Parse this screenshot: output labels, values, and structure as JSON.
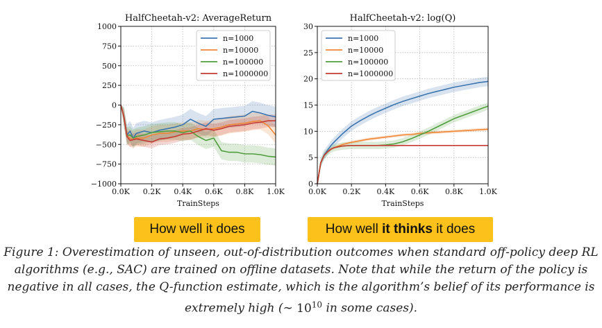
{
  "colors": {
    "n1000": "#3b75af",
    "n10000": "#ef8636",
    "n100000": "#519e3e",
    "n1000000": "#c53a32",
    "badge": "#fcc21b"
  },
  "badges": {
    "left": "How well it does",
    "right_pre": "How well ",
    "right_bold": "it thinks",
    "right_post": " it does"
  },
  "caption": {
    "line1": "Figure 1: Overestimation of unseen, out-of-distribution outcomes when standard off-policy deep RL",
    "line2": "algorithms (e.g., SAC) are trained on offline datasets. Note that while the return of the policy is",
    "line3": "negative in all cases, the Q-function estimate, which is the algorithm’s belief of its performance is",
    "line4_pre": "extremely high (∼ ",
    "line4_base": "10",
    "line4_exp": "10",
    "line4_post": " in some cases)."
  },
  "chart_data": [
    {
      "type": "line",
      "title": "HalfCheetah-v2: AverageReturn",
      "xlabel": "TrainSteps",
      "ylabel": "",
      "xlim": [
        0,
        1000
      ],
      "ylim": [
        -1000,
        1000
      ],
      "xticks": [
        0,
        200,
        400,
        600,
        800,
        1000
      ],
      "xtick_labels": [
        "0.0K",
        "0.2K",
        "0.4K",
        "0.6K",
        "0.8K",
        "1.0K"
      ],
      "yticks": [
        -1000,
        -750,
        -500,
        -250,
        0,
        250,
        500,
        750,
        1000
      ],
      "ytick_labels": [
        "−1000",
        "−750",
        "−500",
        "−250",
        "0",
        "250",
        "500",
        "750",
        "1000"
      ],
      "grid": true,
      "legend": "top-right",
      "x": [
        0,
        20,
        40,
        60,
        80,
        100,
        150,
        200,
        250,
        300,
        350,
        400,
        450,
        500,
        550,
        600,
        650,
        700,
        750,
        800,
        850,
        900,
        950,
        1000
      ],
      "series": [
        {
          "name": "n=1000",
          "color_key": "n1000",
          "band": 130,
          "values": [
            0,
            -150,
            -380,
            -330,
            -420,
            -360,
            -330,
            -350,
            -320,
            -300,
            -280,
            -250,
            -180,
            -230,
            -270,
            -180,
            -170,
            -160,
            -150,
            -140,
            -80,
            -100,
            -130,
            -150
          ]
        },
        {
          "name": "n=10000",
          "color_key": "n10000",
          "band": 110,
          "values": [
            0,
            -150,
            -400,
            -420,
            -440,
            -420,
            -420,
            -380,
            -360,
            -360,
            -340,
            -330,
            -330,
            -300,
            -310,
            -300,
            -280,
            -250,
            -240,
            -230,
            -210,
            -200,
            -260,
            -380
          ]
        },
        {
          "name": "n=100000",
          "color_key": "n100000",
          "band": 110,
          "values": [
            0,
            -150,
            -390,
            -380,
            -420,
            -400,
            -380,
            -350,
            -340,
            -330,
            -330,
            -350,
            -330,
            -400,
            -450,
            -420,
            -580,
            -600,
            -600,
            -620,
            -620,
            -630,
            -650,
            -660
          ]
        },
        {
          "name": "n=1000000",
          "color_key": "n1000000",
          "band": 80,
          "values": [
            0,
            -150,
            -400,
            -450,
            -440,
            -430,
            -450,
            -470,
            -430,
            -420,
            -400,
            -370,
            -360,
            -330,
            -300,
            -320,
            -300,
            -270,
            -260,
            -250,
            -230,
            -220,
            -200,
            -200
          ]
        }
      ]
    },
    {
      "type": "line",
      "title": "HalfCheetah-v2: log(Q)",
      "xlabel": "TrainSteps",
      "ylabel": "",
      "xlim": [
        0,
        1000
      ],
      "ylim": [
        0,
        30
      ],
      "xticks": [
        0,
        200,
        400,
        600,
        800,
        1000
      ],
      "xtick_labels": [
        "0.0K",
        "0.2K",
        "0.4K",
        "0.6K",
        "0.8K",
        "1.0K"
      ],
      "yticks": [
        0,
        5,
        10,
        15,
        20,
        25,
        30
      ],
      "ytick_labels": [
        "0",
        "5",
        "10",
        "15",
        "20",
        "25",
        "30"
      ],
      "grid": true,
      "legend": "top-left",
      "x": [
        0,
        20,
        40,
        60,
        80,
        100,
        150,
        200,
        250,
        300,
        350,
        400,
        450,
        500,
        550,
        600,
        650,
        700,
        750,
        800,
        850,
        900,
        950,
        1000
      ],
      "series": [
        {
          "name": "n=1000",
          "color_key": "n1000",
          "band": 0.9,
          "values": [
            0,
            4.0,
            5.5,
            6.4,
            7.3,
            8.0,
            9.6,
            11.0,
            12.0,
            12.9,
            13.7,
            14.4,
            15.1,
            15.7,
            16.2,
            16.7,
            17.2,
            17.6,
            18.0,
            18.4,
            18.7,
            19.0,
            19.3,
            19.5
          ]
        },
        {
          "name": "n=10000",
          "color_key": "n10000",
          "band": 0.3,
          "values": [
            0,
            4.0,
            5.4,
            6.1,
            6.6,
            6.9,
            7.5,
            7.9,
            8.2,
            8.5,
            8.7,
            8.9,
            9.1,
            9.3,
            9.4,
            9.6,
            9.7,
            9.8,
            9.9,
            10.0,
            10.1,
            10.2,
            10.3,
            10.4
          ]
        },
        {
          "name": "n=100000",
          "color_key": "n100000",
          "band": 0.7,
          "values": [
            0,
            4.0,
            5.4,
            6.1,
            6.6,
            6.9,
            7.2,
            7.3,
            7.3,
            7.3,
            7.3,
            7.4,
            7.6,
            8.0,
            8.6,
            9.3,
            10.0,
            10.8,
            11.6,
            12.4,
            13.0,
            13.6,
            14.2,
            14.8
          ]
        },
        {
          "name": "n=1000000",
          "color_key": "n1000000",
          "band": 0.05,
          "values": [
            0,
            4.0,
            5.4,
            6.1,
            6.6,
            6.9,
            7.2,
            7.3,
            7.3,
            7.3,
            7.3,
            7.3,
            7.3,
            7.3,
            7.3,
            7.3,
            7.3,
            7.3,
            7.3,
            7.3,
            7.3,
            7.3,
            7.3,
            7.3
          ]
        }
      ]
    }
  ]
}
